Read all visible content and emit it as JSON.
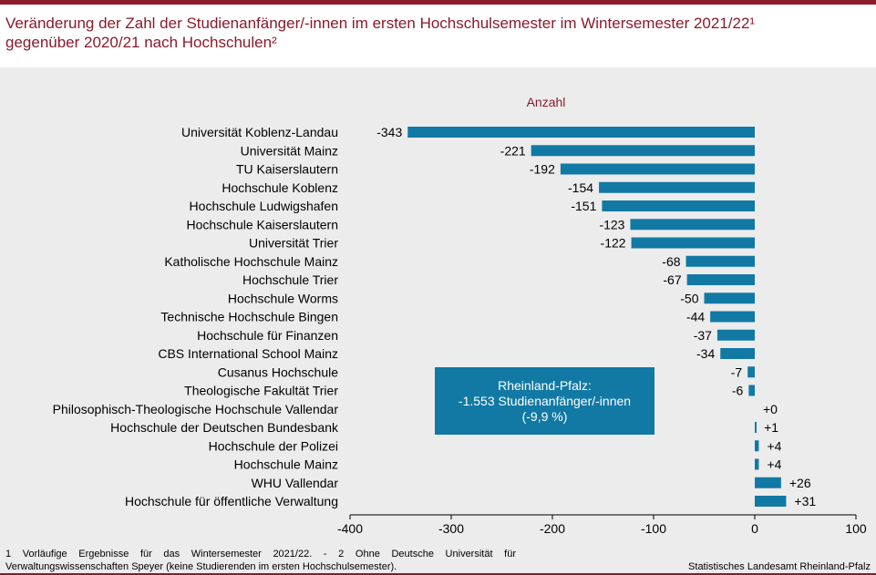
{
  "title_line1": "Veränderung der Zahl der Studienanfänger/-innen im ersten Hochschulsemester im Wintersemester 2021/22¹",
  "title_line2": "gegenüber 2020/21 nach Hochschulen²",
  "footnote": "1 Vorläufige Ergebnisse für das Wintersemester 2021/22. - 2 Ohne Deutsche Universität für Verwaltungswissenschaften Speyer (keine Studierenden im ersten Hochschulsemester).",
  "source": "Statistisches Landesamt Rheinland-Pfalz",
  "info_box": {
    "line1": "Rheinland-Pfalz:",
    "line2": "-1.553 Studienanfänger/-innen",
    "line3": "(-9,9 %)"
  },
  "colors": {
    "bar": "#1279a5",
    "title": "#8b1a2b",
    "background": "#ececec"
  },
  "chart_data": {
    "type": "bar",
    "orientation": "horizontal",
    "unit_label": "Anzahl",
    "categories": [
      "Universität Koblenz-Landau",
      "Universität Mainz",
      "TU Kaiserslautern",
      "Hochschule Koblenz",
      "Hochschule Ludwigshafen",
      "Hochschule Kaiserslautern",
      "Universität Trier",
      "Katholische Hochschule Mainz",
      "Hochschule Trier",
      "Hochschule Worms",
      "Technische Hochschule Bingen",
      "Hochschule für Finanzen",
      "CBS International School Mainz",
      "Cusanus Hochschule",
      "Theologische Fakultät Trier",
      "Philosophisch-Theologische Hochschule Vallendar",
      "Hochschule der Deutschen Bundesbank",
      "Hochschule der Polizei",
      "Hochschule Mainz",
      "WHU Vallendar",
      "Hochschule für öffentliche Verwaltung"
    ],
    "values": [
      -343,
      -221,
      -192,
      -154,
      -151,
      -123,
      -122,
      -68,
      -67,
      -50,
      -44,
      -37,
      -34,
      -7,
      -6,
      0,
      1,
      4,
      4,
      26,
      31
    ],
    "value_labels": [
      "-343",
      "-221",
      "-192",
      "-154",
      "-151",
      "-123",
      "-122",
      "-68",
      "-67",
      "-50",
      "-44",
      "-37",
      "-34",
      "-7",
      "-6",
      "+0",
      "+1",
      "+4",
      "+4",
      "+26",
      "+31"
    ],
    "xlim": [
      -400,
      100
    ],
    "xticks": [
      -400,
      -300,
      -200,
      -100,
      0,
      100
    ],
    "xtick_labels": [
      "-400",
      "-300",
      "-200",
      "-100",
      "0",
      "100"
    ],
    "grid": false,
    "legend": "none"
  }
}
